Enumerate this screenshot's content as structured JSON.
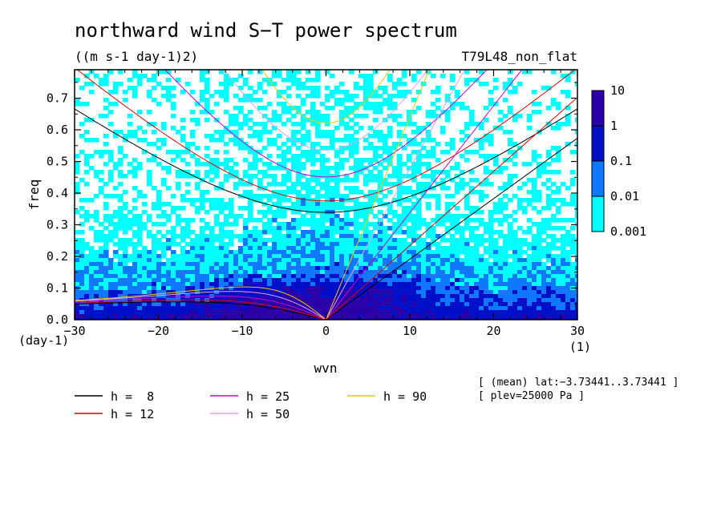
{
  "chart_data": {
    "type": "heatmap",
    "title": "northward wind S−T power spectrum",
    "units": "((m s-1 day-1)2)",
    "experiment": "T79L48_non_flat",
    "xlabel": "wvn",
    "ylabel": "freq",
    "x_unit": "(1)",
    "y_unit": "(day-1)",
    "xlim": [
      -30,
      30
    ],
    "ylim": [
      0,
      0.79
    ],
    "x_ticks": [
      -30,
      -20,
      -10,
      0,
      10,
      20,
      30
    ],
    "x_tick_labels": [
      "−30",
      "−20",
      "−10",
      "0",
      "10",
      "20",
      "30"
    ],
    "y_ticks": [
      0.0,
      0.1,
      0.2,
      0.3,
      0.4,
      0.5,
      0.6,
      0.7
    ],
    "y_tick_labels": [
      "0.0",
      "0.1",
      "0.2",
      "0.3",
      "0.4",
      "0.5",
      "0.6",
      "0.7"
    ],
    "colorbar": {
      "levels": [
        0.001,
        0.01,
        0.1,
        1,
        10
      ],
      "level_labels": [
        "0.001",
        "0.01",
        "0.1",
        "1",
        "10"
      ],
      "colors": [
        "#00ffff",
        "#0f78ff",
        "#0010c8",
        "#2b00a8"
      ]
    },
    "dispersion_curves": [
      {
        "label": "h =  8",
        "h": 8,
        "color": "#000000"
      },
      {
        "label": "h = 12",
        "h": 12,
        "color": "#e00000"
      },
      {
        "label": "h = 25",
        "h": 25,
        "color": "#cc00cc"
      },
      {
        "label": "h = 50",
        "h": 50,
        "color": "#e6a0e6"
      },
      {
        "label": "h = 90",
        "h": 90,
        "color": "#f0c800"
      }
    ],
    "annotations": [
      "[ (mean) lat:−3.73441..3.73441 ]",
      "[ plev=25000 Pa ]"
    ]
  }
}
